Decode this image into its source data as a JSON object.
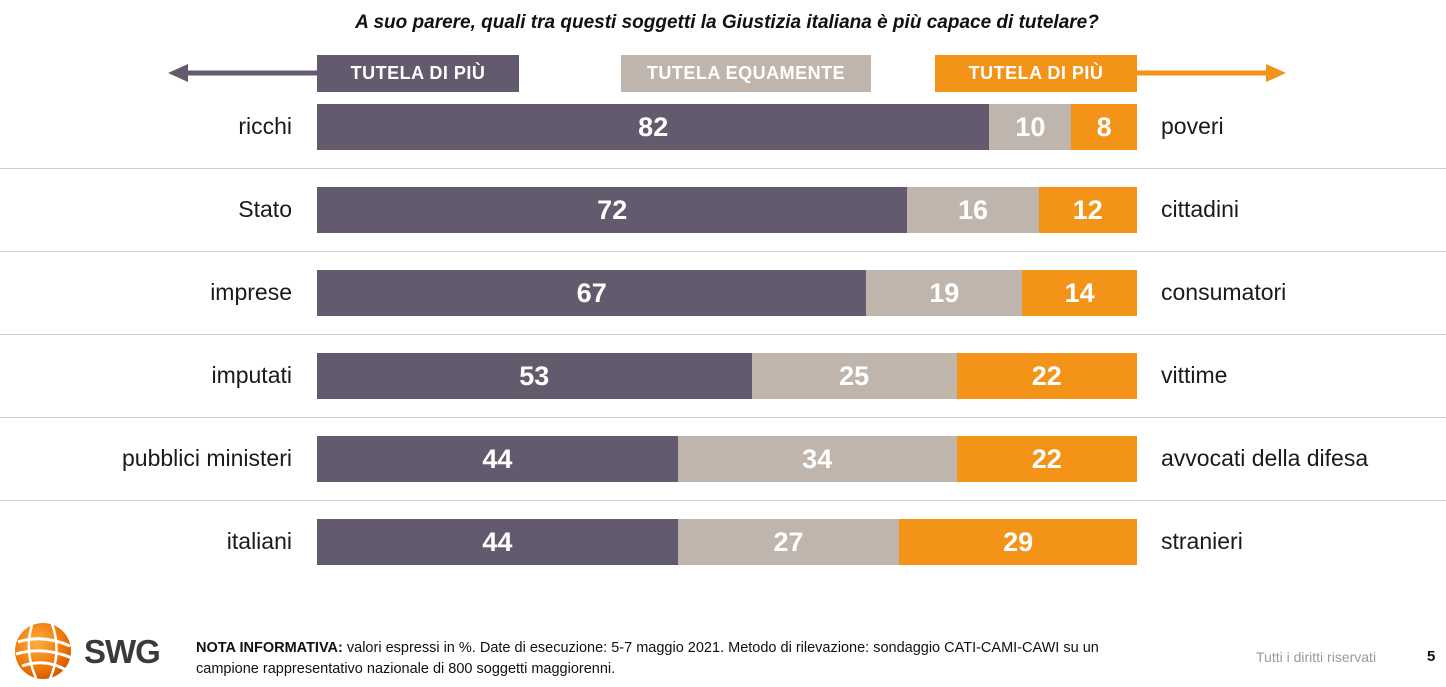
{
  "title": "A suo parere, quali tra questi soggetti la Giustizia italiana è più capace di tutelare?",
  "colors": {
    "left": "#645a6d",
    "middle": "#c0b5ac",
    "right": "#f39318"
  },
  "chart_data": {
    "type": "bar",
    "stacked": true,
    "orientation": "horizontal",
    "unit": "%",
    "categories": [
      "ricchi",
      "Stato",
      "imprese",
      "imputati",
      "pubblici ministeri",
      "italiani"
    ],
    "right_categories": [
      "poveri",
      "cittadini",
      "consumatori",
      "vittime",
      "avvocati della difesa",
      "stranieri"
    ],
    "series": [
      {
        "name": "TUTELA DI PIÙ",
        "values": [
          82,
          72,
          67,
          53,
          44,
          44
        ]
      },
      {
        "name": "TUTELA EQUAMENTE",
        "values": [
          10,
          16,
          19,
          25,
          34,
          27
        ]
      },
      {
        "name": "TUTELA DI PIÙ",
        "values": [
          8,
          12,
          14,
          22,
          22,
          29
        ]
      }
    ],
    "xlim": [
      0,
      100
    ]
  },
  "legend": {
    "left_label": "TUTELA DI PIÙ",
    "middle_label": "TUTELA EQUAMENTE",
    "right_label": "TUTELA DI PIÙ"
  },
  "footer": {
    "note_label": "NOTA INFORMATIVA:",
    "note_text": " valori espressi in %. Date di esecuzione: 5-7 maggio 2021. Metodo di rilevazione: sondaggio CATI-CAMI-CAWI su un campione rappresentativo nazionale di 800 soggetti maggiorenni.",
    "rights": "Tutti i diritti riservati",
    "page_number": "5",
    "logo_text": "SWG",
    "logo_icon": "swg-globe-icon"
  }
}
